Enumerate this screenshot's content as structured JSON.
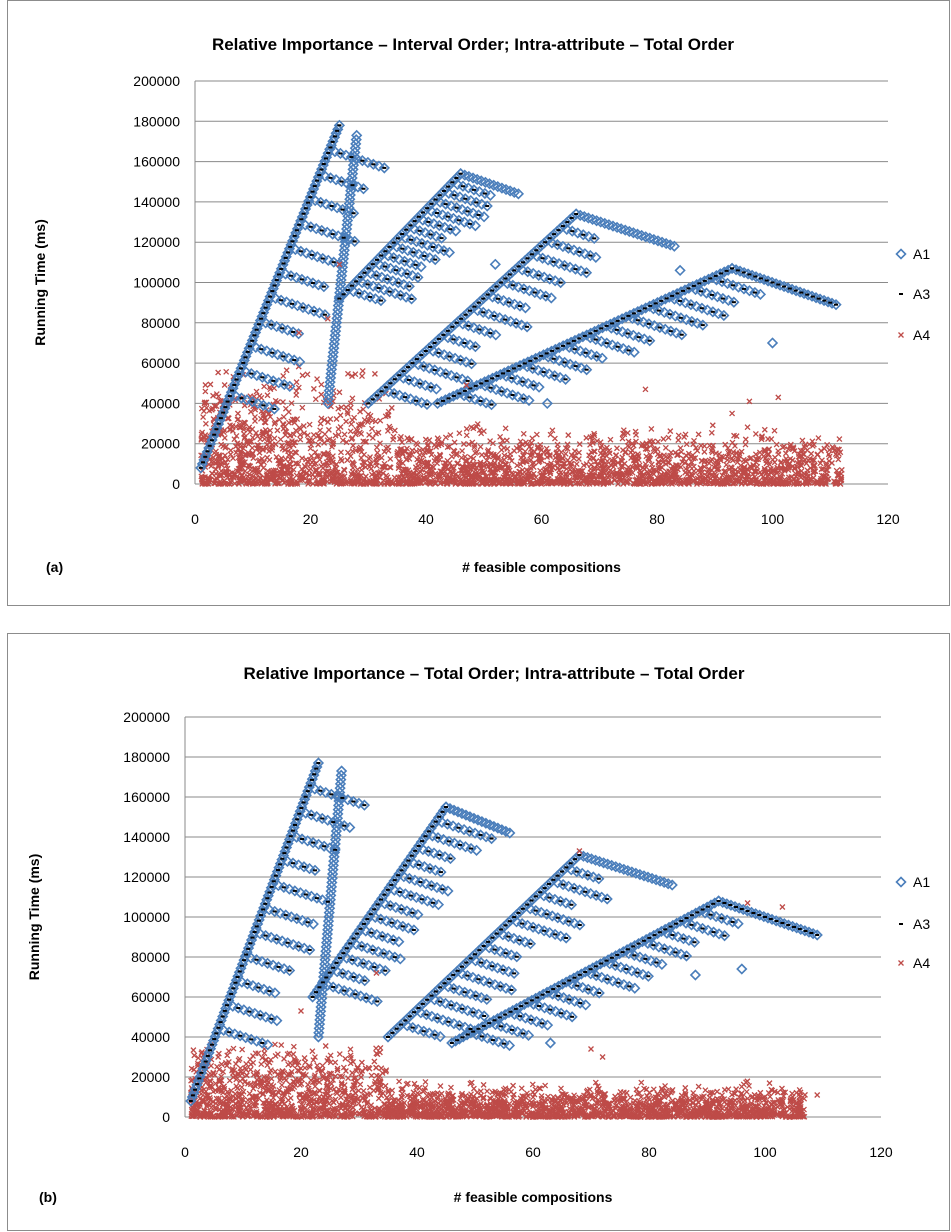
{
  "chart_data": [
    {
      "type": "scatter",
      "panel_label": "(a)",
      "title": "Relative Importance – Interval Order; Intra-attribute – Total Order",
      "xlabel": "# feasible compositions",
      "ylabel": "Running Time (ms)",
      "xlim": [
        0,
        120
      ],
      "ylim": [
        0,
        200000
      ],
      "x_ticks": [
        "0",
        "20",
        "40",
        "60",
        "80",
        "100",
        "120"
      ],
      "y_ticks": [
        "0",
        "20000",
        "40000",
        "60000",
        "80000",
        "100000",
        "120000",
        "140000",
        "160000",
        "180000",
        "200000"
      ],
      "grid": "horizontal",
      "legend_position": "right",
      "series": [
        {
          "name": "A1",
          "marker": "diamond",
          "color": "#4a7ebb",
          "bands": [
            {
              "start": [
                1,
                8000
              ],
              "end": [
                25,
                178000
              ]
            },
            {
              "start": [
                23,
                40000
              ],
              "end": [
                28,
                173000
              ]
            },
            {
              "start": [
                25,
                92000
              ],
              "end": [
                46,
                154000
              ]
            },
            {
              "start": [
                46,
                154000
              ],
              "end": [
                56,
                144000
              ]
            },
            {
              "start": [
                30,
                40000
              ],
              "end": [
                66,
                134000
              ]
            },
            {
              "start": [
                66,
                134000
              ],
              "end": [
                83,
                118000
              ]
            },
            {
              "start": [
                42,
                40000
              ],
              "end": [
                93,
                107000
              ]
            },
            {
              "start": [
                93,
                107000
              ],
              "end": [
                111,
                89000
              ]
            }
          ],
          "points": [
            [
              100,
              70000
            ],
            [
              84,
              106000
            ],
            [
              52,
              109000
            ],
            [
              61,
              40000
            ]
          ]
        },
        {
          "name": "A3",
          "marker": "dash",
          "color": "#000000",
          "bands": [
            {
              "start": [
                1,
                8000
              ],
              "end": [
                25,
                178000
              ]
            },
            {
              "start": [
                25,
                92000
              ],
              "end": [
                46,
                154000
              ]
            },
            {
              "start": [
                30,
                40000
              ],
              "end": [
                66,
                134000
              ]
            },
            {
              "start": [
                42,
                40000
              ],
              "end": [
                93,
                107000
              ]
            },
            {
              "start": [
                93,
                107000
              ],
              "end": [
                111,
                89000
              ]
            }
          ]
        },
        {
          "name": "A4",
          "marker": "x",
          "color": "#be4b48",
          "cloud": {
            "x_range": [
              1,
              112
            ],
            "typical_max": 20000,
            "max": 60000
          },
          "points": [
            [
              25,
              109000
            ],
            [
              23,
              82000
            ],
            [
              18,
              75000
            ],
            [
              47,
              49000
            ],
            [
              78,
              47000
            ],
            [
              96,
              41000
            ],
            [
              101,
              43000
            ],
            [
              112,
              7000
            ],
            [
              93,
              35000
            ]
          ]
        }
      ]
    },
    {
      "type": "scatter",
      "panel_label": "(b)",
      "title": "Relative Importance – Total Order; Intra-attribute – Total Order",
      "xlabel": "# feasible compositions",
      "ylabel": "Running Time (ms)",
      "xlim": [
        0,
        120
      ],
      "ylim": [
        0,
        200000
      ],
      "x_ticks": [
        "0",
        "20",
        "40",
        "60",
        "80",
        "100",
        "120"
      ],
      "y_ticks": [
        "0",
        "20000",
        "40000",
        "60000",
        "80000",
        "100000",
        "120000",
        "140000",
        "160000",
        "180000",
        "200000"
      ],
      "grid": "horizontal",
      "legend_position": "right",
      "series": [
        {
          "name": "A1",
          "marker": "diamond",
          "color": "#4a7ebb",
          "bands": [
            {
              "start": [
                1,
                8000
              ],
              "end": [
                23,
                177000
              ]
            },
            {
              "start": [
                23,
                40000
              ],
              "end": [
                27,
                173000
              ]
            },
            {
              "start": [
                22,
                60000
              ],
              "end": [
                45,
                155000
              ]
            },
            {
              "start": [
                45,
                155000
              ],
              "end": [
                56,
                142000
              ]
            },
            {
              "start": [
                35,
                40000
              ],
              "end": [
                68,
                131000
              ]
            },
            {
              "start": [
                68,
                131000
              ],
              "end": [
                84,
                116000
              ]
            },
            {
              "start": [
                46,
                37000
              ],
              "end": [
                92,
                108000
              ]
            },
            {
              "start": [
                92,
                108000
              ],
              "end": [
                109,
                91000
              ]
            }
          ],
          "points": [
            [
              63,
              37000
            ],
            [
              88,
              71000
            ],
            [
              96,
              74000
            ]
          ]
        },
        {
          "name": "A3",
          "marker": "dash",
          "color": "#000000",
          "bands": [
            {
              "start": [
                1,
                8000
              ],
              "end": [
                23,
                177000
              ]
            },
            {
              "start": [
                22,
                60000
              ],
              "end": [
                45,
                155000
              ]
            },
            {
              "start": [
                35,
                40000
              ],
              "end": [
                68,
                131000
              ]
            },
            {
              "start": [
                46,
                37000
              ],
              "end": [
                92,
                108000
              ]
            },
            {
              "start": [
                92,
                108000
              ],
              "end": [
                109,
                91000
              ]
            }
          ]
        },
        {
          "name": "A4",
          "marker": "x",
          "color": "#be4b48",
          "cloud": {
            "x_range": [
              1,
              107
            ],
            "typical_max": 12000,
            "max": 40000
          },
          "points": [
            [
              33,
              72000
            ],
            [
              20,
              53000
            ],
            [
              70,
              34000
            ],
            [
              109,
              11000
            ],
            [
              103,
              105000
            ],
            [
              97,
              107000
            ],
            [
              68,
              133000
            ],
            [
              72,
              30000
            ]
          ]
        }
      ]
    }
  ]
}
